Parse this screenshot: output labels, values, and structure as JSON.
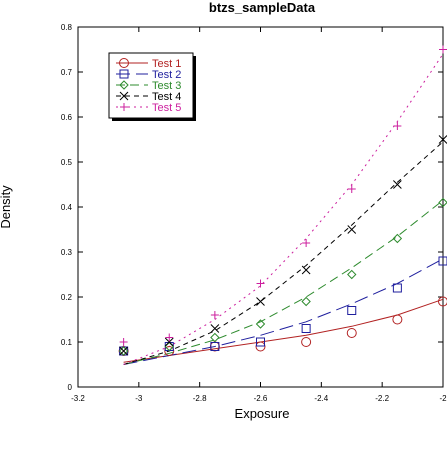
{
  "chart_data": {
    "type": "scatter",
    "title": "btzs_sampleData",
    "xlabel": "Exposure",
    "ylabel": "Density",
    "xlim": [
      -3.2,
      -2.0
    ],
    "ylim": [
      0,
      0.8
    ],
    "xticks": [
      -3.2,
      -3.0,
      -2.8,
      -2.6,
      -2.4,
      -2.2,
      -2.0
    ],
    "xtick_labels": [
      "-3.2",
      "-3",
      "-2.8",
      "-2.6",
      "-2.4",
      "-2.2",
      "-2"
    ],
    "yticks": [
      0,
      0.1,
      0.2,
      0.3,
      0.4,
      0.5,
      0.6,
      0.7,
      0.8
    ],
    "ytick_labels": [
      "0",
      "0.1",
      "0.2",
      "0.3",
      "0.4",
      "0.5",
      "0.6",
      "0.7",
      "0.8"
    ],
    "grid": false,
    "legend_position": "top-left",
    "series": [
      {
        "name": "Test 1",
        "color": "#b22222",
        "marker": "circle",
        "line_style": "solid",
        "points": [
          [
            -3.05,
            0.08
          ],
          [
            -2.9,
            0.08
          ],
          [
            -2.75,
            0.09
          ],
          [
            -2.6,
            0.09
          ],
          [
            -2.45,
            0.1
          ],
          [
            -2.3,
            0.12
          ],
          [
            -2.15,
            0.15
          ],
          [
            -2.0,
            0.19
          ]
        ],
        "fit": [
          [
            -3.05,
            0.055
          ],
          [
            -2.9,
            0.07
          ],
          [
            -2.75,
            0.085
          ],
          [
            -2.6,
            0.1
          ],
          [
            -2.45,
            0.115
          ],
          [
            -2.3,
            0.135
          ],
          [
            -2.15,
            0.16
          ],
          [
            -2.0,
            0.195
          ]
        ]
      },
      {
        "name": "Test 2",
        "color": "#1f1f9e",
        "marker": "square",
        "line_style": "long-dash",
        "points": [
          [
            -3.05,
            0.08
          ],
          [
            -2.9,
            0.09
          ],
          [
            -2.75,
            0.09
          ],
          [
            -2.6,
            0.1
          ],
          [
            -2.45,
            0.13
          ],
          [
            -2.3,
            0.17
          ],
          [
            -2.15,
            0.22
          ],
          [
            -2.0,
            0.28
          ]
        ],
        "fit": [
          [
            -3.05,
            0.05
          ],
          [
            -2.9,
            0.07
          ],
          [
            -2.75,
            0.09
          ],
          [
            -2.6,
            0.115
          ],
          [
            -2.45,
            0.145
          ],
          [
            -2.3,
            0.185
          ],
          [
            -2.15,
            0.23
          ],
          [
            -2.0,
            0.285
          ]
        ]
      },
      {
        "name": "Test 3",
        "color": "#2e8b2e",
        "marker": "diamond",
        "line_style": "dash",
        "points": [
          [
            -3.05,
            0.08
          ],
          [
            -2.9,
            0.09
          ],
          [
            -2.75,
            0.11
          ],
          [
            -2.6,
            0.14
          ],
          [
            -2.45,
            0.19
          ],
          [
            -2.3,
            0.25
          ],
          [
            -2.15,
            0.33
          ],
          [
            -2.0,
            0.41
          ]
        ],
        "fit": [
          [
            -3.05,
            0.05
          ],
          [
            -2.9,
            0.075
          ],
          [
            -2.75,
            0.105
          ],
          [
            -2.6,
            0.145
          ],
          [
            -2.45,
            0.2
          ],
          [
            -2.3,
            0.265
          ],
          [
            -2.15,
            0.335
          ],
          [
            -2.0,
            0.415
          ]
        ]
      },
      {
        "name": "Test 4",
        "color": "#000000",
        "marker": "x",
        "line_style": "short-dash",
        "points": [
          [
            -3.05,
            0.08
          ],
          [
            -2.9,
            0.1
          ],
          [
            -2.75,
            0.13
          ],
          [
            -2.6,
            0.19
          ],
          [
            -2.45,
            0.26
          ],
          [
            -2.3,
            0.35
          ],
          [
            -2.15,
            0.45
          ],
          [
            -2.0,
            0.55
          ]
        ],
        "fit": [
          [
            -3.05,
            0.05
          ],
          [
            -2.9,
            0.08
          ],
          [
            -2.75,
            0.125
          ],
          [
            -2.6,
            0.19
          ],
          [
            -2.45,
            0.27
          ],
          [
            -2.3,
            0.36
          ],
          [
            -2.15,
            0.455
          ],
          [
            -2.0,
            0.545
          ]
        ]
      },
      {
        "name": "Test 5",
        "color": "#cc1f9e",
        "marker": "plus",
        "line_style": "dot",
        "points": [
          [
            -3.05,
            0.1
          ],
          [
            -2.9,
            0.11
          ],
          [
            -2.75,
            0.16
          ],
          [
            -2.6,
            0.23
          ],
          [
            -2.45,
            0.32
          ],
          [
            -2.3,
            0.44
          ],
          [
            -2.15,
            0.58
          ],
          [
            -2.0,
            0.75
          ]
        ],
        "fit": [
          [
            -3.05,
            0.05
          ],
          [
            -2.9,
            0.09
          ],
          [
            -2.75,
            0.15
          ],
          [
            -2.6,
            0.225
          ],
          [
            -2.45,
            0.33
          ],
          [
            -2.3,
            0.45
          ],
          [
            -2.15,
            0.59
          ],
          [
            -2.0,
            0.74
          ]
        ]
      }
    ]
  }
}
